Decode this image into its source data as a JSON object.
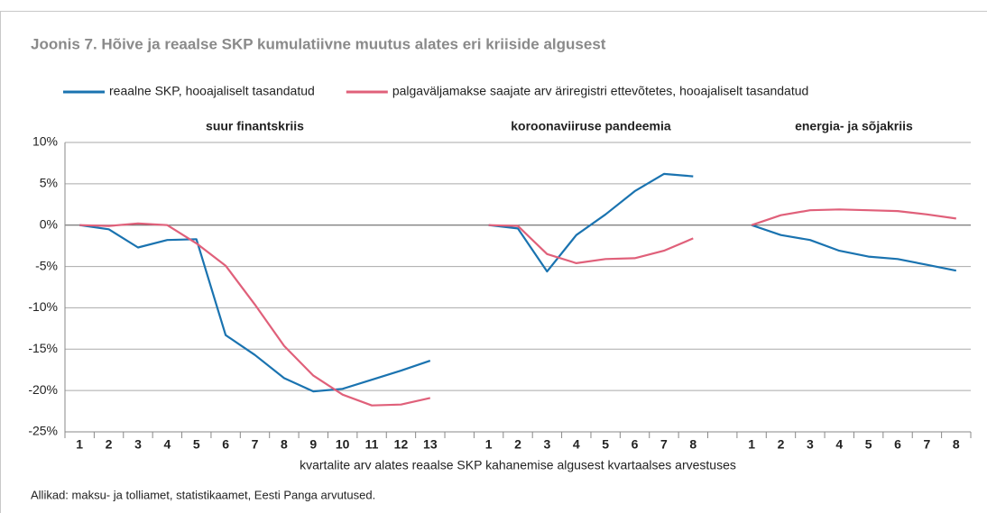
{
  "chart_data": {
    "type": "line",
    "title": "Joonis 7. Hõive ja reaalse SKP kumulatiivne muutus alates eri kriiside algusest",
    "panel_titles": [
      "suur finantskriis",
      "koroonaviiruse pandeemia",
      "energia- ja sõjakriis"
    ],
    "xlabel": "kvartalite arv alates reaalse SKP kahanemise algusest kvartaalses arvestuses",
    "source": "Allikad: maksu- ja tolliamet, statistikaamet, Eesti Panga arvutused.",
    "categories": [
      "1",
      "2",
      "3",
      "4",
      "5",
      "6",
      "7",
      "8",
      "9",
      "10",
      "11",
      "12",
      "13",
      null,
      "1",
      "2",
      "3",
      "4",
      "5",
      "6",
      "7",
      "8",
      null,
      "1",
      "2",
      "3",
      "4",
      "5",
      "6",
      "7",
      "8"
    ],
    "series": [
      {
        "name": "reaalne SKP, hooajaliselt tasandatud",
        "color": "#1a73b0",
        "values": [
          0,
          -0.5,
          -2.7,
          -1.8,
          -1.7,
          -13.3,
          -15.7,
          -18.5,
          -20.1,
          -19.8,
          -18.7,
          -17.6,
          -16.4,
          null,
          0,
          -0.4,
          -5.6,
          -1.2,
          1.3,
          4.1,
          6.2,
          5.9,
          null,
          0,
          -1.2,
          -1.8,
          -3.1,
          -3.8,
          -4.1,
          -4.8,
          -5.5
        ]
      },
      {
        "name": "palgaväljamakse saajate arv äriregistri ettevõtetes, hooajaliselt tasandatud",
        "color": "#e0607a",
        "values": [
          0,
          -0.1,
          0.2,
          0,
          -2.2,
          -4.9,
          -9.6,
          -14.6,
          -18.2,
          -20.5,
          -21.8,
          -21.7,
          -20.9,
          null,
          0,
          -0.1,
          -3.5,
          -4.6,
          -4.1,
          -4.0,
          -3.1,
          -1.6,
          null,
          0,
          1.2,
          1.8,
          1.9,
          1.8,
          1.7,
          1.3,
          0.8
        ]
      }
    ],
    "ylim": [
      -25,
      10
    ],
    "yticks": [
      {
        "value": -25,
        "label": "-25%"
      },
      {
        "value": -20,
        "label": "-20%"
      },
      {
        "value": -15,
        "label": "-15%"
      },
      {
        "value": -10,
        "label": "-10%"
      },
      {
        "value": -5,
        "label": "-5%"
      },
      {
        "value": 0,
        "label": "0%"
      },
      {
        "value": 5,
        "label": "5%"
      },
      {
        "value": 10,
        "label": "10%"
      }
    ],
    "grid": true
  }
}
